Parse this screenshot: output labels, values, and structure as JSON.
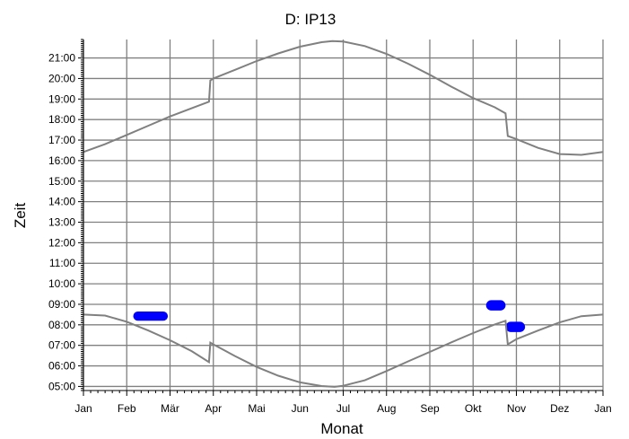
{
  "chart_data": {
    "type": "line",
    "title": "D: IP13",
    "xlabel": "Monat",
    "ylabel": "Zeit",
    "x_ticks": [
      "Jan",
      "Feb",
      "Mär",
      "Apr",
      "Mai",
      "Jun",
      "Jul",
      "Aug",
      "Sep",
      "Okt",
      "Nov",
      "Dez",
      "Jan"
    ],
    "y_ticks": [
      "05:00",
      "06:00",
      "07:00",
      "08:00",
      "09:00",
      "10:00",
      "11:00",
      "12:00",
      "13:00",
      "14:00",
      "15:00",
      "16:00",
      "17:00",
      "18:00",
      "19:00",
      "20:00",
      "21:00"
    ],
    "xlim": [
      0,
      12
    ],
    "ylim": [
      4.8,
      21.9
    ],
    "grid": true,
    "colors": {
      "curve": "#808080",
      "shadow": "#0000ff",
      "grid": "#808080",
      "axis": "#000000"
    },
    "series": [
      {
        "points": [
          [
            0,
            16.42
          ],
          [
            0.5,
            16.8
          ],
          [
            1,
            17.25
          ],
          [
            1.5,
            17.7
          ],
          [
            2,
            18.15
          ],
          [
            2.5,
            18.55
          ],
          [
            2.9,
            18.87
          ],
          [
            2.93,
            19.9
          ],
          [
            3,
            20.0
          ],
          [
            3.5,
            20.42
          ],
          [
            4,
            20.85
          ],
          [
            4.5,
            21.22
          ],
          [
            5,
            21.55
          ],
          [
            5.5,
            21.77
          ],
          [
            5.75,
            21.82
          ],
          [
            6,
            21.8
          ],
          [
            6.5,
            21.58
          ],
          [
            7,
            21.2
          ],
          [
            7.5,
            20.72
          ],
          [
            8,
            20.18
          ],
          [
            8.5,
            19.6
          ],
          [
            9,
            19.05
          ],
          [
            9.5,
            18.6
          ],
          [
            9.75,
            18.3
          ],
          [
            9.8,
            17.2
          ],
          [
            10,
            17.05
          ],
          [
            10.5,
            16.62
          ],
          [
            11,
            16.32
          ],
          [
            11.5,
            16.28
          ],
          [
            12,
            16.42
          ]
        ]
      },
      {
        "points": [
          [
            0,
            8.5
          ],
          [
            0.5,
            8.45
          ],
          [
            1,
            8.15
          ],
          [
            1.5,
            7.72
          ],
          [
            2,
            7.25
          ],
          [
            2.5,
            6.72
          ],
          [
            2.9,
            6.18
          ],
          [
            2.93,
            7.13
          ],
          [
            3,
            7.05
          ],
          [
            3.5,
            6.48
          ],
          [
            4,
            5.95
          ],
          [
            4.5,
            5.52
          ],
          [
            5,
            5.2
          ],
          [
            5.5,
            5.02
          ],
          [
            5.8,
            4.98
          ],
          [
            6,
            5.03
          ],
          [
            6.5,
            5.3
          ],
          [
            7,
            5.75
          ],
          [
            7.5,
            6.22
          ],
          [
            8,
            6.68
          ],
          [
            8.5,
            7.15
          ],
          [
            9,
            7.6
          ],
          [
            9.5,
            8.02
          ],
          [
            9.75,
            8.2
          ],
          [
            9.8,
            7.05
          ],
          [
            10,
            7.3
          ],
          [
            10.5,
            7.72
          ],
          [
            11,
            8.12
          ],
          [
            11.5,
            8.42
          ],
          [
            12,
            8.5
          ]
        ]
      }
    ],
    "shadow_regions": [
      {
        "x": [
          1.15,
          1.95
        ],
        "y": [
          8.2,
          8.65
        ]
      },
      {
        "x": [
          9.3,
          9.75
        ],
        "y": [
          8.7,
          9.2
        ]
      },
      {
        "x": [
          9.75,
          10.2
        ],
        "y": [
          7.65,
          8.15
        ]
      }
    ]
  }
}
